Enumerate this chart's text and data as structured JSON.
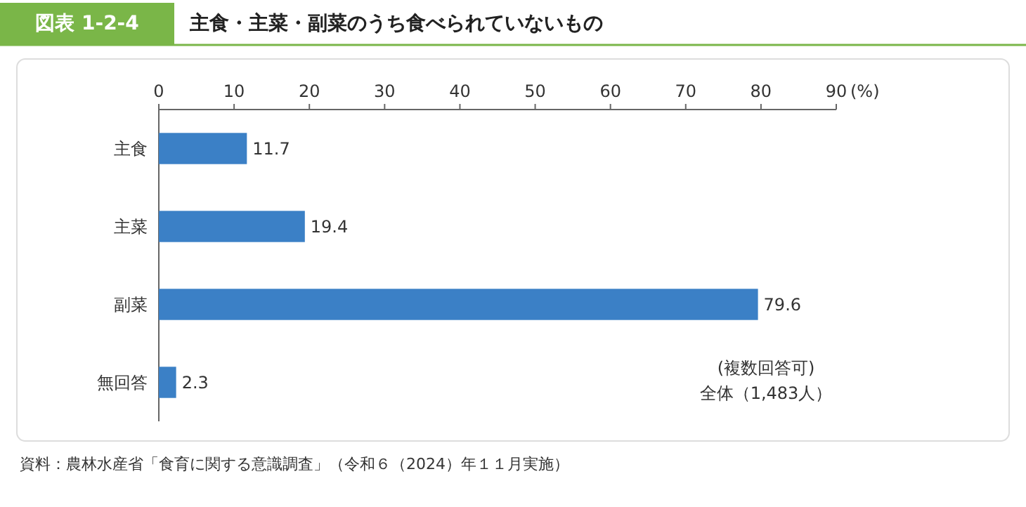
{
  "chart_data": {
    "type": "bar",
    "orientation": "horizontal",
    "title": "図表 1-2-4",
    "subtitle": "主食・主菜・副菜のうち食べられていないもの",
    "categories": [
      "主食",
      "主菜",
      "副菜",
      "無回答"
    ],
    "values": [
      11.7,
      19.4,
      79.6,
      2.3
    ],
    "color": "#3b80c6",
    "xlim": [
      0,
      90
    ],
    "xticks": [
      0,
      10,
      20,
      30,
      40,
      50,
      60,
      70,
      80,
      90
    ],
    "xlabel": "(%)",
    "data_labels": true,
    "annotations": [
      "(複数回答可)",
      "全体（1,483人）",
      "資料：農林水産省「食育に関する意識調査」（令和６（2024）年１１月実施）"
    ]
  }
}
